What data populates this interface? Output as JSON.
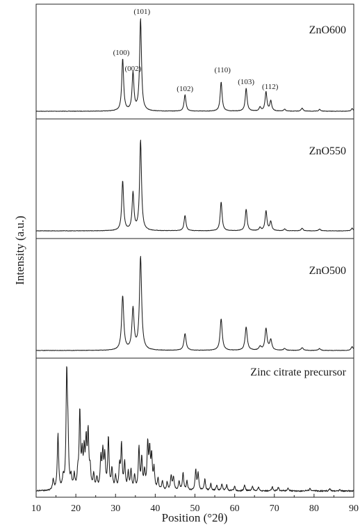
{
  "chart_data": {
    "type": "line",
    "title": "",
    "xlabel": "Position (°2θ)",
    "ylabel": "Intensity (a.u.)",
    "xlim": [
      10,
      90
    ],
    "x_ticks": [
      "10",
      "20",
      "30",
      "40",
      "50",
      "60",
      "70",
      "80",
      "90"
    ],
    "y_ticks_shown": false,
    "layout": "stacked panels (top to bottom): ZnO600, ZnO550, ZnO500, Zinc citrate precursor",
    "series": [
      {
        "name": "ZnO600",
        "peaks": [
          {
            "x": 31.8,
            "y": 0.57
          },
          {
            "x": 34.4,
            "y": 0.41
          },
          {
            "x": 36.3,
            "y": 1.0
          },
          {
            "x": 47.5,
            "y": 0.18
          },
          {
            "x": 56.6,
            "y": 0.32
          },
          {
            "x": 62.9,
            "y": 0.25
          },
          {
            "x": 66.4,
            "y": 0.04
          },
          {
            "x": 67.9,
            "y": 0.21
          },
          {
            "x": 69.1,
            "y": 0.11
          },
          {
            "x": 72.6,
            "y": 0.02
          },
          {
            "x": 77.0,
            "y": 0.035
          },
          {
            "x": 81.4,
            "y": 0.02
          },
          {
            "x": 89.6,
            "y": 0.03
          }
        ]
      },
      {
        "name": "ZnO550",
        "peaks": [
          {
            "x": 31.8,
            "y": 0.55
          },
          {
            "x": 34.4,
            "y": 0.41
          },
          {
            "x": 36.3,
            "y": 1.0
          },
          {
            "x": 47.5,
            "y": 0.17
          },
          {
            "x": 56.6,
            "y": 0.32
          },
          {
            "x": 62.9,
            "y": 0.24
          },
          {
            "x": 66.4,
            "y": 0.035
          },
          {
            "x": 67.9,
            "y": 0.22
          },
          {
            "x": 69.1,
            "y": 0.1
          },
          {
            "x": 72.6,
            "y": 0.02
          },
          {
            "x": 77.0,
            "y": 0.03
          },
          {
            "x": 81.4,
            "y": 0.02
          },
          {
            "x": 89.6,
            "y": 0.03
          }
        ]
      },
      {
        "name": "ZnO500",
        "peaks": [
          {
            "x": 31.8,
            "y": 0.58
          },
          {
            "x": 34.4,
            "y": 0.44
          },
          {
            "x": 36.3,
            "y": 1.0
          },
          {
            "x": 47.5,
            "y": 0.18
          },
          {
            "x": 56.6,
            "y": 0.34
          },
          {
            "x": 62.9,
            "y": 0.25
          },
          {
            "x": 66.4,
            "y": 0.04
          },
          {
            "x": 67.9,
            "y": 0.23
          },
          {
            "x": 69.1,
            "y": 0.11
          },
          {
            "x": 72.6,
            "y": 0.02
          },
          {
            "x": 77.0,
            "y": 0.03
          },
          {
            "x": 81.4,
            "y": 0.02
          },
          {
            "x": 89.6,
            "y": 0.04
          }
        ]
      },
      {
        "name": "Zinc citrate precursor",
        "peaks": [
          {
            "x": 14.3,
            "y": 0.09
          },
          {
            "x": 15.5,
            "y": 0.5
          },
          {
            "x": 16.8,
            "y": 0.1
          },
          {
            "x": 17.7,
            "y": 1.0
          },
          {
            "x": 18.0,
            "y": 0.4
          },
          {
            "x": 18.8,
            "y": 0.1
          },
          {
            "x": 19.6,
            "y": 0.12
          },
          {
            "x": 20.5,
            "y": 0.13
          },
          {
            "x": 21.0,
            "y": 0.68
          },
          {
            "x": 21.6,
            "y": 0.28
          },
          {
            "x": 22.1,
            "y": 0.31
          },
          {
            "x": 22.6,
            "y": 0.4
          },
          {
            "x": 23.1,
            "y": 0.48
          },
          {
            "x": 23.6,
            "y": 0.17
          },
          {
            "x": 24.5,
            "y": 0.13
          },
          {
            "x": 25.3,
            "y": 0.1
          },
          {
            "x": 26.3,
            "y": 0.27
          },
          {
            "x": 26.8,
            "y": 0.32
          },
          {
            "x": 27.3,
            "y": 0.28
          },
          {
            "x": 28.2,
            "y": 0.46
          },
          {
            "x": 29.1,
            "y": 0.18
          },
          {
            "x": 30.0,
            "y": 0.12
          },
          {
            "x": 31.0,
            "y": 0.2
          },
          {
            "x": 31.5,
            "y": 0.39
          },
          {
            "x": 32.3,
            "y": 0.24
          },
          {
            "x": 33.2,
            "y": 0.15
          },
          {
            "x": 33.9,
            "y": 0.17
          },
          {
            "x": 34.8,
            "y": 0.12
          },
          {
            "x": 35.9,
            "y": 0.37
          },
          {
            "x": 36.6,
            "y": 0.27
          },
          {
            "x": 37.3,
            "y": 0.15
          },
          {
            "x": 38.1,
            "y": 0.4
          },
          {
            "x": 38.6,
            "y": 0.33
          },
          {
            "x": 39.1,
            "y": 0.28
          },
          {
            "x": 39.7,
            "y": 0.18
          },
          {
            "x": 40.7,
            "y": 0.1
          },
          {
            "x": 41.8,
            "y": 0.08
          },
          {
            "x": 43.0,
            "y": 0.07
          },
          {
            "x": 44.0,
            "y": 0.13
          },
          {
            "x": 44.6,
            "y": 0.12
          },
          {
            "x": 46.0,
            "y": 0.08
          },
          {
            "x": 47.0,
            "y": 0.16
          },
          {
            "x": 48.0,
            "y": 0.08
          },
          {
            "x": 50.2,
            "y": 0.18
          },
          {
            "x": 50.8,
            "y": 0.15
          },
          {
            "x": 52.5,
            "y": 0.1
          },
          {
            "x": 54.0,
            "y": 0.06
          },
          {
            "x": 55.5,
            "y": 0.05
          },
          {
            "x": 56.8,
            "y": 0.06
          },
          {
            "x": 58.0,
            "y": 0.05
          },
          {
            "x": 60.0,
            "y": 0.04
          },
          {
            "x": 62.5,
            "y": 0.05
          },
          {
            "x": 64.5,
            "y": 0.04
          },
          {
            "x": 66.0,
            "y": 0.03
          },
          {
            "x": 69.5,
            "y": 0.035
          },
          {
            "x": 71.0,
            "y": 0.03
          },
          {
            "x": 73.5,
            "y": 0.025
          },
          {
            "x": 79.0,
            "y": 0.02
          },
          {
            "x": 84.0,
            "y": 0.02
          },
          {
            "x": 86.5,
            "y": 0.015
          }
        ]
      }
    ],
    "annotations": [
      {
        "text": "(100)",
        "x": 31.8
      },
      {
        "text": "(002)",
        "x": 34.4
      },
      {
        "text": "(101)",
        "x": 36.3
      },
      {
        "text": "(102)",
        "x": 47.5
      },
      {
        "text": "(110)",
        "x": 56.6
      },
      {
        "text": "(103)",
        "x": 62.9
      },
      {
        "text": "(112)",
        "x": 67.9
      }
    ]
  }
}
